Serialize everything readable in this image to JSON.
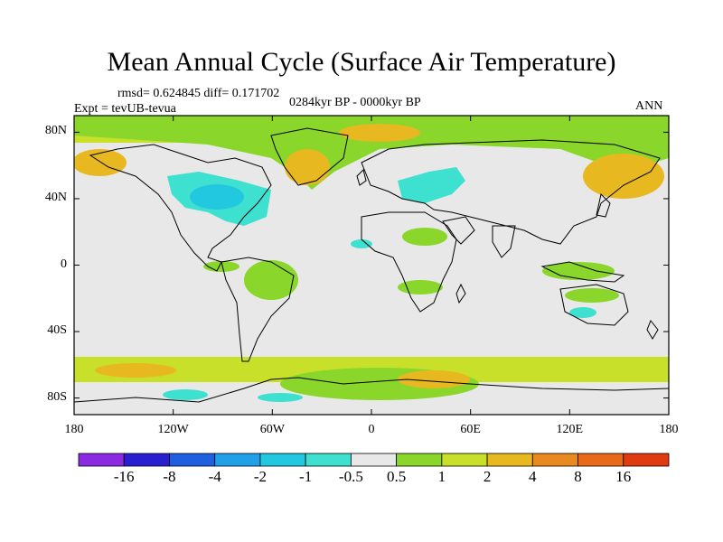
{
  "title": "Mean Annual Cycle (Surface Air Temperature)",
  "stats": "rmsd= 0.624845 diff= 0.171702",
  "experiment": "Expt = tevUB-tevua",
  "period": "0284kyr BP - 0000kyr BP",
  "season": "ANN",
  "map": {
    "projection": "cylindrical-equidistant",
    "lon_range": [
      -180,
      180
    ],
    "lat_range": [
      -90,
      90
    ],
    "background_color": "#e8e8e8",
    "lat_ticks": [
      {
        "value": 80,
        "label": "80N"
      },
      {
        "value": 40,
        "label": "40N"
      },
      {
        "value": 0,
        "label": "0"
      },
      {
        "value": -40,
        "label": "40S"
      },
      {
        "value": -80,
        "label": "80S"
      }
    ],
    "lon_ticks": [
      {
        "value": -180,
        "label": "180"
      },
      {
        "value": -120,
        "label": "120W"
      },
      {
        "value": -60,
        "label": "60W"
      },
      {
        "value": 0,
        "label": "0"
      },
      {
        "value": 60,
        "label": "60E"
      },
      {
        "value": 120,
        "label": "120E"
      },
      {
        "value": 180,
        "label": "180"
      }
    ]
  },
  "colorbar": {
    "labels": [
      "-16",
      "-8",
      "-4",
      "-2",
      "-1",
      "-0.5",
      "0.5",
      "1",
      "2",
      "4",
      "8",
      "16"
    ],
    "colors": [
      "#8a2be2",
      "#2a1fd0",
      "#1f5fe0",
      "#1fa0e8",
      "#22c8e0",
      "#3ee0d0",
      "#e8e8e8",
      "#8ad62a",
      "#c8e02a",
      "#e8b820",
      "#e88a20",
      "#e86a18",
      "#e03a10"
    ]
  }
}
